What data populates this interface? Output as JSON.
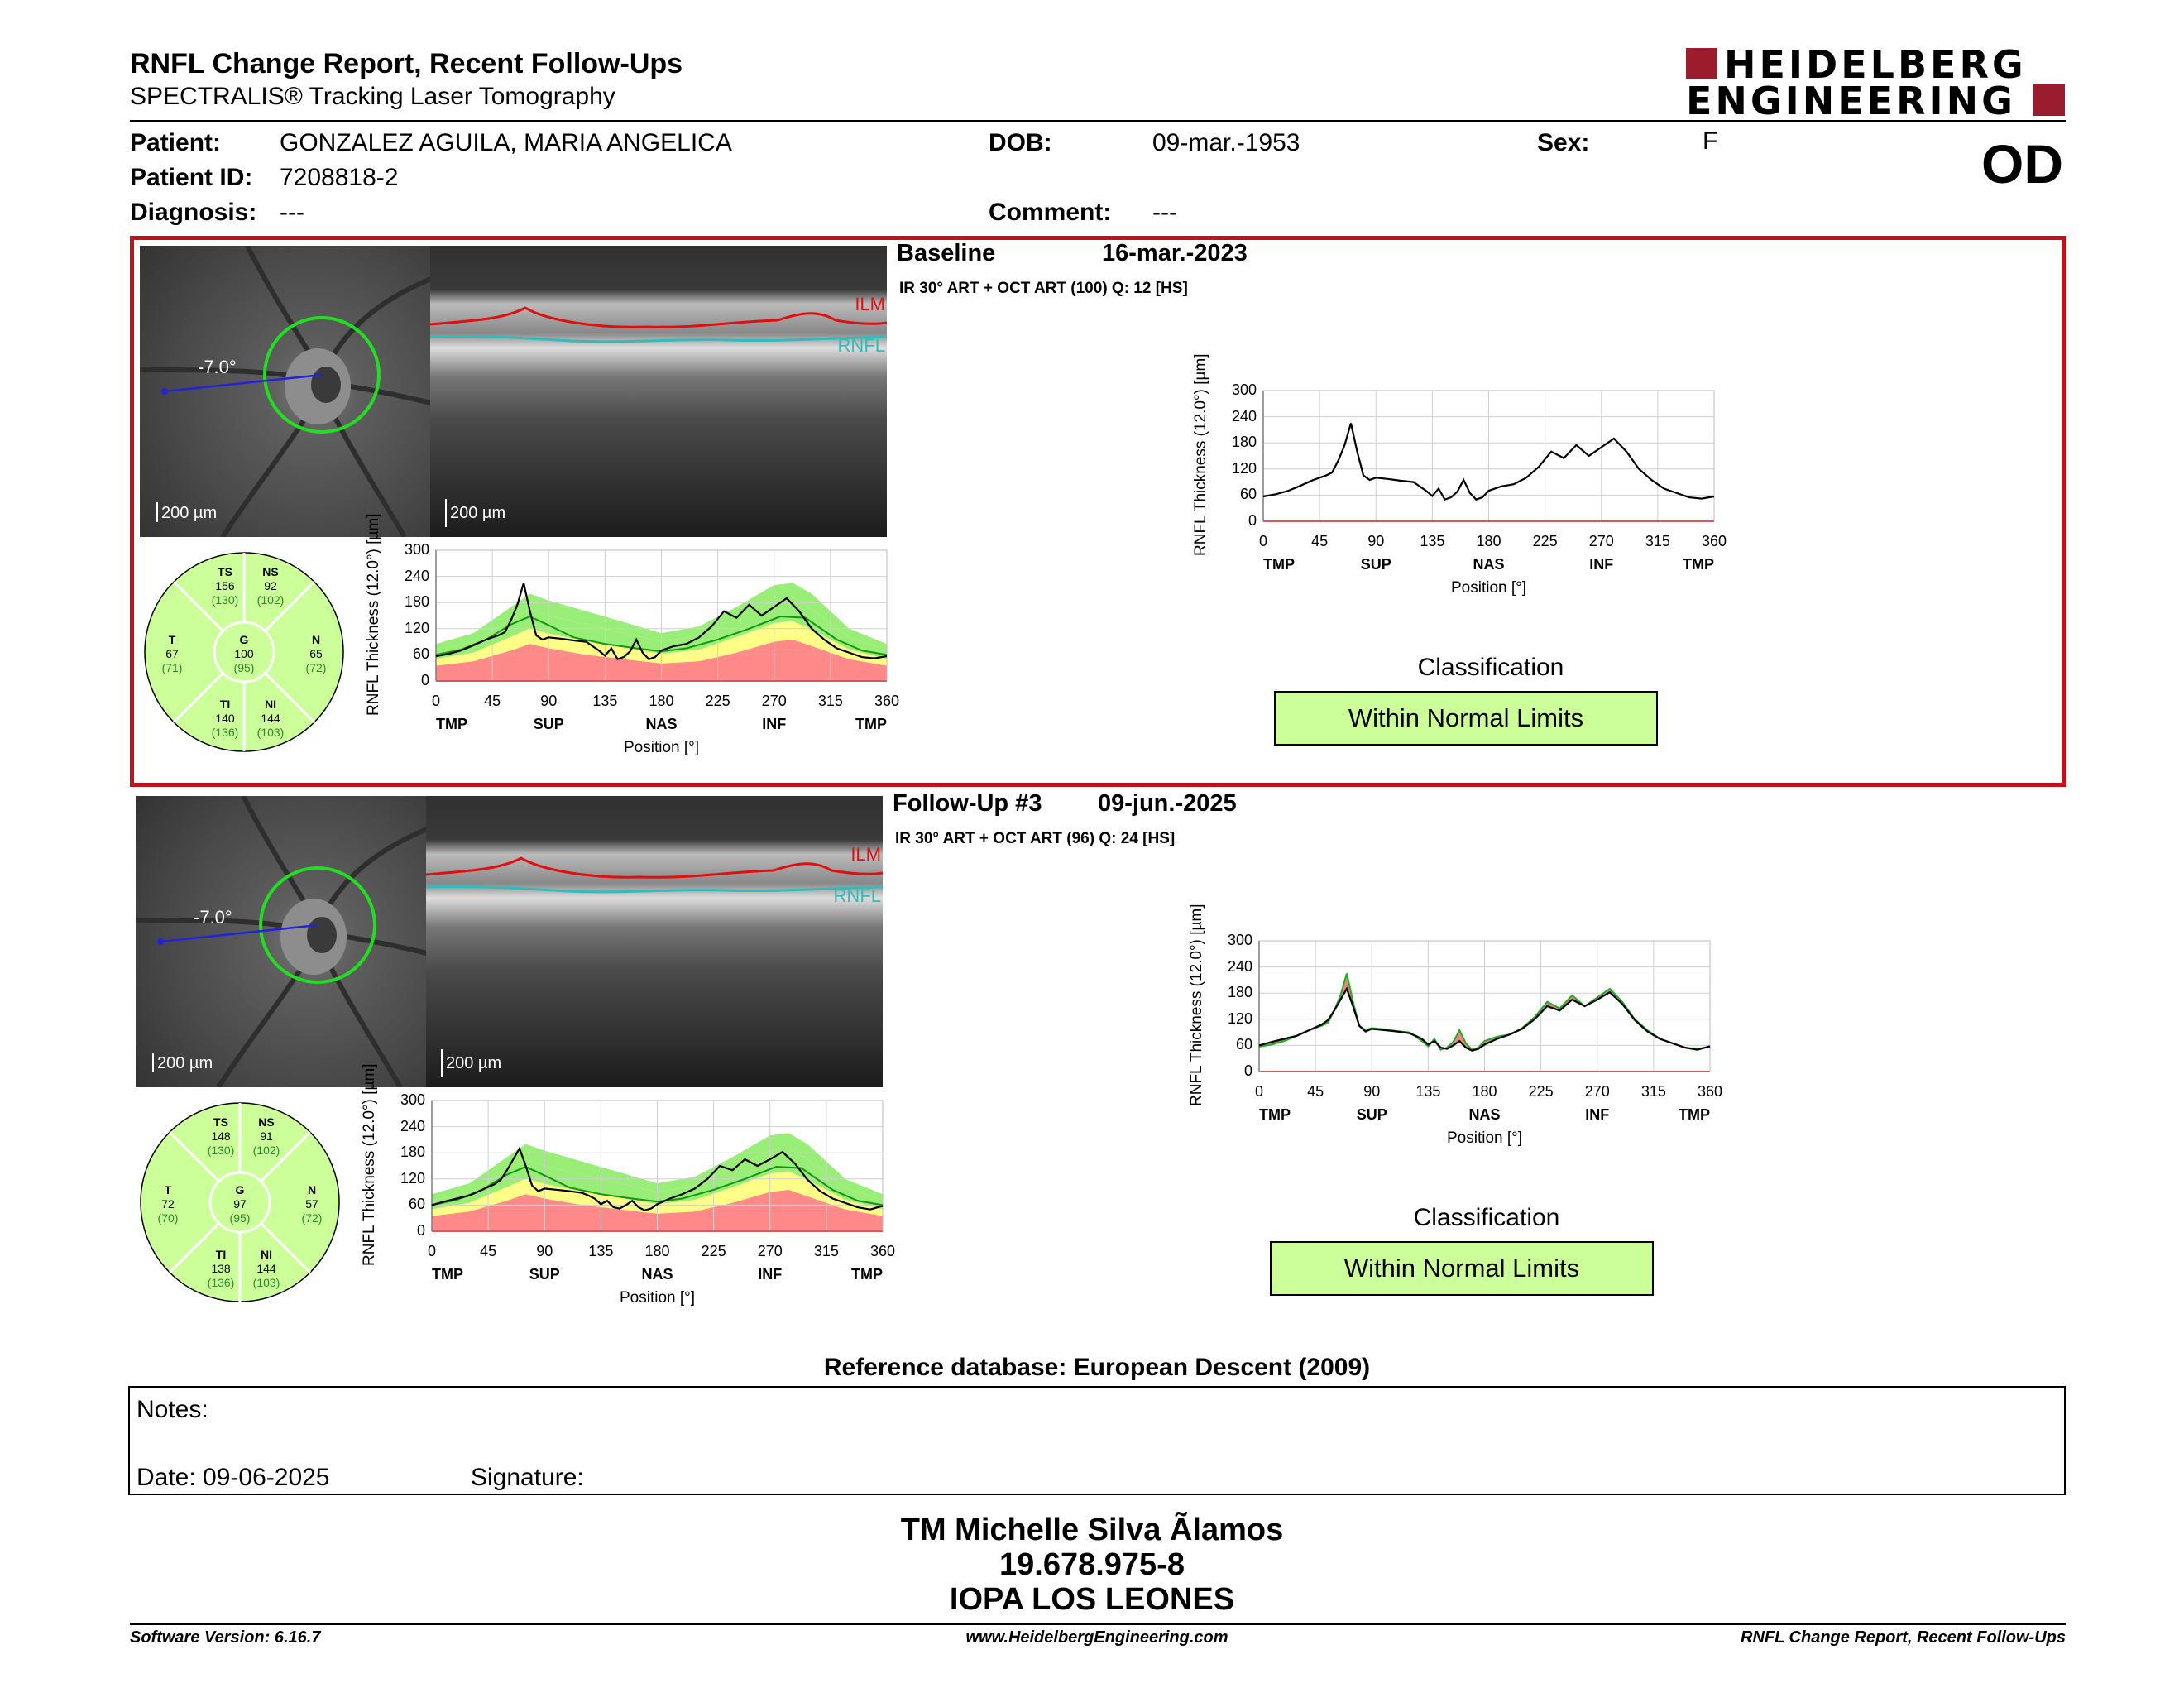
{
  "report": {
    "title": "RNFL Change Report, Recent Follow-Ups",
    "subtitle": "SPECTRALIS® Tracking Laser Tomography",
    "logo_line1": "HEIDELBERG",
    "logo_line2": "ENGINEERING",
    "eye": "OD"
  },
  "patient": {
    "name_label": "Patient:",
    "name": "GONZALEZ AGUILA, MARIA ANGELICA",
    "id_label": "Patient ID:",
    "id": "7208818-2",
    "diagnosis_label": "Diagnosis:",
    "diagnosis": "---",
    "dob_label": "DOB:",
    "dob": "09-mar.-1953",
    "comment_label": "Comment:",
    "comment": "---",
    "sex_label": "Sex:",
    "sex": "F"
  },
  "colors": {
    "selection_border": "#c0121a",
    "wnl_green": "#ccff99",
    "normal_band": "#99ee77",
    "borderline_band": "#ffff88",
    "below_band": "#ff8888",
    "ilm": "#e01010",
    "rnfl": "#33bbbb",
    "circle": "#22dd22",
    "scan_line": "#2222dd"
  },
  "exams": [
    {
      "label": "Baseline",
      "date": "16-mar.-2023",
      "acq": "IR 30° ART + OCT ART (100) Q: 12 [HS]",
      "angle": "-7.0°",
      "scale_fundus": "200 µm",
      "scale_oct": "200 µm",
      "ilm_label": "ILM",
      "rnfl_label": "RNFL",
      "sectors": {
        "TS": {
          "name": "TS",
          "value": "156",
          "normal": "(130)"
        },
        "NS": {
          "name": "NS",
          "value": "92",
          "normal": "(102)"
        },
        "T": {
          "name": "T",
          "value": "67",
          "normal": "(71)"
        },
        "G": {
          "name": "G",
          "value": "100",
          "normal": "(95)"
        },
        "N": {
          "name": "N",
          "value": "65",
          "normal": "(72)"
        },
        "TI": {
          "name": "TI",
          "value": "140",
          "normal": "(136)"
        },
        "NI": {
          "name": "NI",
          "value": "144",
          "normal": "(103)"
        }
      },
      "classification_title": "Classification",
      "classification": "Within Normal Limits"
    },
    {
      "label": "Follow-Up #3",
      "date": "09-jun.-2025",
      "acq": "IR 30° ART + OCT ART (96) Q: 24 [HS]",
      "angle": "-7.0°",
      "scale_fundus": "200 µm",
      "scale_oct": "200 µm",
      "ilm_label": "ILM",
      "rnfl_label": "RNFL",
      "sectors": {
        "TS": {
          "name": "TS",
          "value": "148",
          "normal": "(130)"
        },
        "NS": {
          "name": "NS",
          "value": "91",
          "normal": "(102)"
        },
        "T": {
          "name": "T",
          "value": "72",
          "normal": "(70)"
        },
        "G": {
          "name": "G",
          "value": "97",
          "normal": "(95)"
        },
        "N": {
          "name": "N",
          "value": "57",
          "normal": "(72)"
        },
        "TI": {
          "name": "TI",
          "value": "138",
          "normal": "(136)"
        },
        "NI": {
          "name": "NI",
          "value": "144",
          "normal": "(103)"
        }
      },
      "classification_title": "Classification",
      "classification": "Within Normal Limits"
    }
  ],
  "chart_data": [
    {
      "type": "line",
      "name": "baseline-thickness-profile",
      "ylabel": "RNFL Thickness (12.0°) [µm]",
      "xlabel": "Position [°]",
      "xlim": [
        0,
        360
      ],
      "ylim": [
        0,
        300
      ],
      "xticks": [
        "0",
        "45",
        "90",
        "135",
        "180",
        "225",
        "270",
        "315",
        "360"
      ],
      "yticks": [
        "0",
        "60",
        "120",
        "180",
        "240",
        "300"
      ],
      "region_labels": [
        "TMP",
        "SUP",
        "NAS",
        "INF",
        "TMP"
      ],
      "x": [
        0,
        10,
        20,
        30,
        40,
        50,
        55,
        60,
        65,
        70,
        75,
        80,
        85,
        90,
        100,
        110,
        120,
        125,
        130,
        135,
        140,
        145,
        150,
        155,
        160,
        165,
        170,
        175,
        180,
        190,
        200,
        210,
        220,
        230,
        240,
        250,
        260,
        270,
        280,
        290,
        300,
        310,
        320,
        330,
        340,
        350,
        360
      ],
      "y": [
        57,
        62,
        70,
        82,
        95,
        105,
        112,
        140,
        175,
        225,
        160,
        105,
        95,
        100,
        97,
        93,
        90,
        80,
        70,
        58,
        75,
        50,
        55,
        68,
        95,
        65,
        50,
        55,
        70,
        80,
        85,
        100,
        125,
        160,
        145,
        175,
        150,
        170,
        190,
        160,
        120,
        95,
        75,
        65,
        55,
        52,
        57
      ]
    },
    {
      "type": "line",
      "name": "baseline-small-profile",
      "series_note": "small profile overlaid on normative band",
      "xlim": [
        0,
        360
      ],
      "ylim": [
        0,
        300
      ],
      "x": [
        0,
        10,
        20,
        30,
        40,
        50,
        55,
        60,
        65,
        70,
        75,
        80,
        85,
        90,
        100,
        110,
        120,
        125,
        130,
        135,
        140,
        145,
        150,
        155,
        160,
        165,
        170,
        175,
        180,
        190,
        200,
        210,
        220,
        230,
        240,
        250,
        260,
        270,
        280,
        290,
        300,
        310,
        320,
        330,
        340,
        350,
        360
      ],
      "y": [
        57,
        62,
        70,
        82,
        95,
        105,
        112,
        140,
        175,
        225,
        160,
        105,
        95,
        100,
        97,
        93,
        90,
        80,
        70,
        58,
        75,
        50,
        55,
        68,
        95,
        65,
        50,
        55,
        70,
        80,
        85,
        100,
        125,
        160,
        145,
        175,
        150,
        170,
        190,
        160,
        120,
        95,
        75,
        65,
        55,
        52,
        57
      ],
      "mean_x": [
        0,
        20,
        40,
        60,
        75,
        90,
        110,
        135,
        160,
        180,
        200,
        225,
        250,
        275,
        295,
        320,
        340,
        360
      ],
      "mean_y": [
        60,
        72,
        95,
        130,
        148,
        128,
        100,
        85,
        75,
        68,
        75,
        95,
        120,
        148,
        145,
        95,
        70,
        60
      ]
    },
    {
      "type": "line",
      "name": "followup-thickness-profile",
      "ylabel": "RNFL Thickness (12.0°) [µm]",
      "xlabel": "Position [°]",
      "xlim": [
        0,
        360
      ],
      "ylim": [
        0,
        300
      ],
      "xticks": [
        "0",
        "45",
        "90",
        "135",
        "180",
        "225",
        "270",
        "315",
        "360"
      ],
      "yticks": [
        "0",
        "60",
        "120",
        "180",
        "240",
        "300"
      ],
      "region_labels": [
        "TMP",
        "SUP",
        "NAS",
        "INF",
        "TMP"
      ],
      "x": [
        0,
        10,
        20,
        30,
        40,
        50,
        55,
        60,
        65,
        70,
        75,
        80,
        85,
        90,
        100,
        110,
        120,
        125,
        130,
        135,
        140,
        145,
        150,
        155,
        160,
        165,
        170,
        175,
        180,
        190,
        200,
        210,
        220,
        230,
        240,
        250,
        260,
        270,
        280,
        290,
        300,
        310,
        320,
        330,
        340,
        350,
        360
      ],
      "y": [
        60,
        68,
        75,
        82,
        95,
        108,
        118,
        140,
        165,
        190,
        150,
        105,
        92,
        98,
        95,
        92,
        88,
        82,
        75,
        62,
        70,
        55,
        52,
        60,
        70,
        55,
        48,
        52,
        62,
        75,
        85,
        98,
        120,
        150,
        140,
        165,
        150,
        165,
        182,
        155,
        118,
        92,
        75,
        65,
        55,
        50,
        58
      ]
    }
  ],
  "reference_db": "Reference database: European Descent (2009)",
  "notes": {
    "notes_label": "Notes:",
    "date_label": "Date: 09-06-2025",
    "signature_label": "Signature:"
  },
  "signer": {
    "name": "TM Michelle Silva Ãlamos",
    "rut": "19.678.975-8",
    "org": "IOPA LOS LEONES"
  },
  "footer": {
    "version": "Software Version: 6.16.7",
    "website": "www.HeidelbergEngineering.com",
    "report_name": "RNFL Change Report, Recent Follow-Ups"
  }
}
